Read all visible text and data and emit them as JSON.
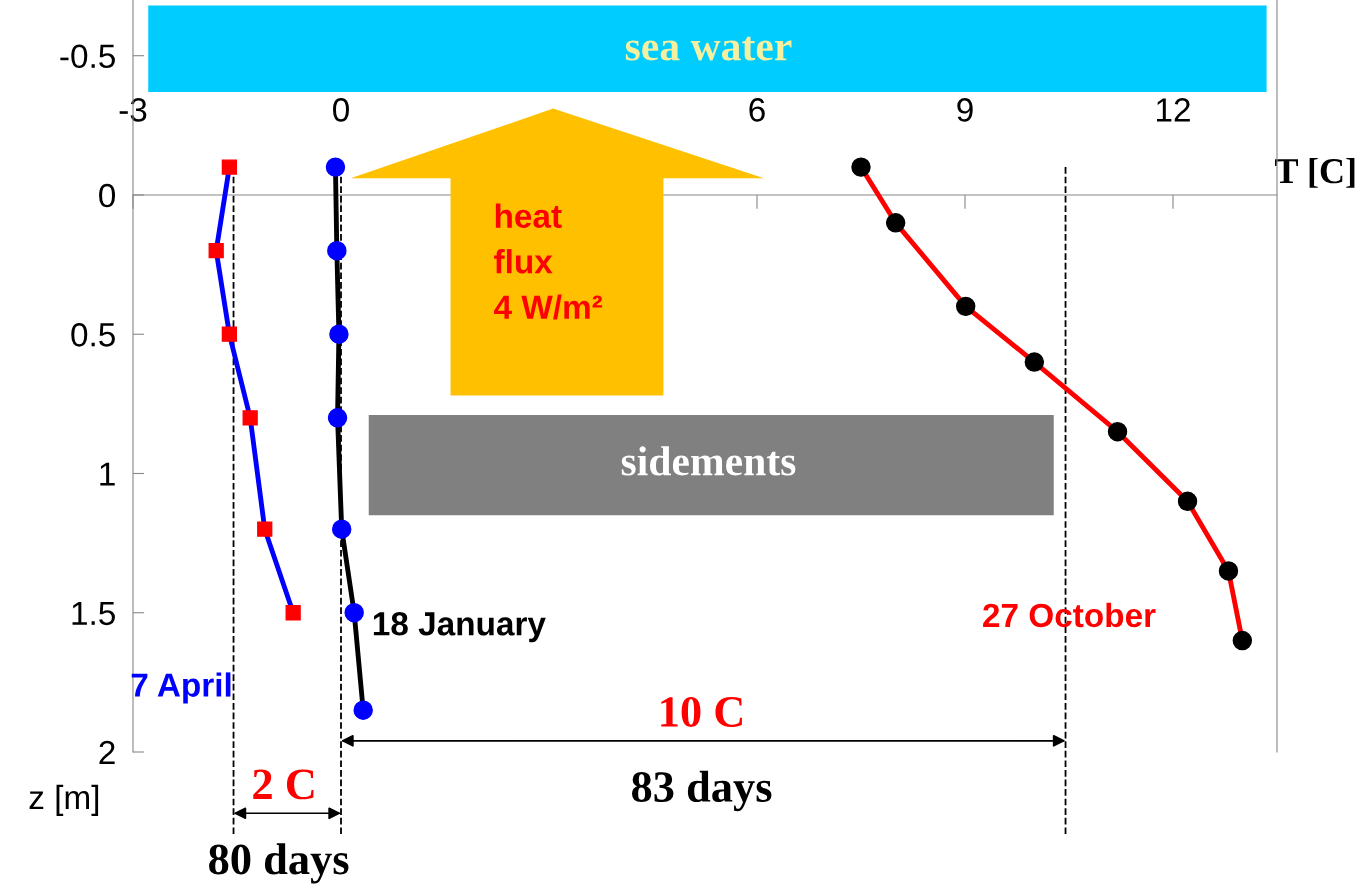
{
  "chart_data": {
    "type": "line",
    "xlabel": "T [C]",
    "ylabel": "z [m]",
    "xlim": [
      -3,
      13.5
    ],
    "xticks": [
      -3,
      0,
      6,
      9,
      12
    ],
    "ylim": [
      2,
      -0.7
    ],
    "yticks": [
      -0.5,
      0,
      0.5,
      1,
      1.5,
      2
    ],
    "grid": false,
    "series": [
      {
        "name": "7 April",
        "color": "#0000ff",
        "marker": "square",
        "x": [
          -1.61,
          -1.8,
          -1.61,
          -1.31,
          -1.1,
          -0.69
        ],
        "values": [
          -0.1,
          0.2,
          0.5,
          0.8,
          1.2,
          1.5
        ]
      },
      {
        "name": "18 January",
        "color": "#000000",
        "marker": "circle",
        "x": [
          -0.08,
          -0.06,
          -0.03,
          -0.05,
          0.01,
          0.19,
          0.32
        ],
        "values": [
          -0.1,
          0.2,
          0.5,
          0.8,
          1.2,
          1.5,
          1.85
        ]
      },
      {
        "name": "27 October",
        "color": "#ff0000",
        "marker": "circle",
        "x": [
          7.5,
          8.0,
          9.01,
          10.0,
          11.2,
          12.21,
          12.8,
          13.0
        ],
        "values": [
          -0.1,
          0.1,
          0.4,
          0.6,
          0.85,
          1.1,
          1.35,
          1.6
        ]
      }
    ],
    "ref_lines": [
      {
        "axis": "x",
        "value": -1.55,
        "line_style": "dashed",
        "color": "#000000"
      },
      {
        "axis": "x",
        "value": 0,
        "line_style": "dashed",
        "color": "#000000"
      },
      {
        "axis": "x",
        "value": 10.45,
        "line_style": "dashed",
        "color": "#000000"
      }
    ],
    "annotations": [
      "sea water",
      "heat\nflux\n4 W/m²",
      "sidements",
      "10 C",
      "83 days",
      "2 C",
      "80 days"
    ]
  }
}
